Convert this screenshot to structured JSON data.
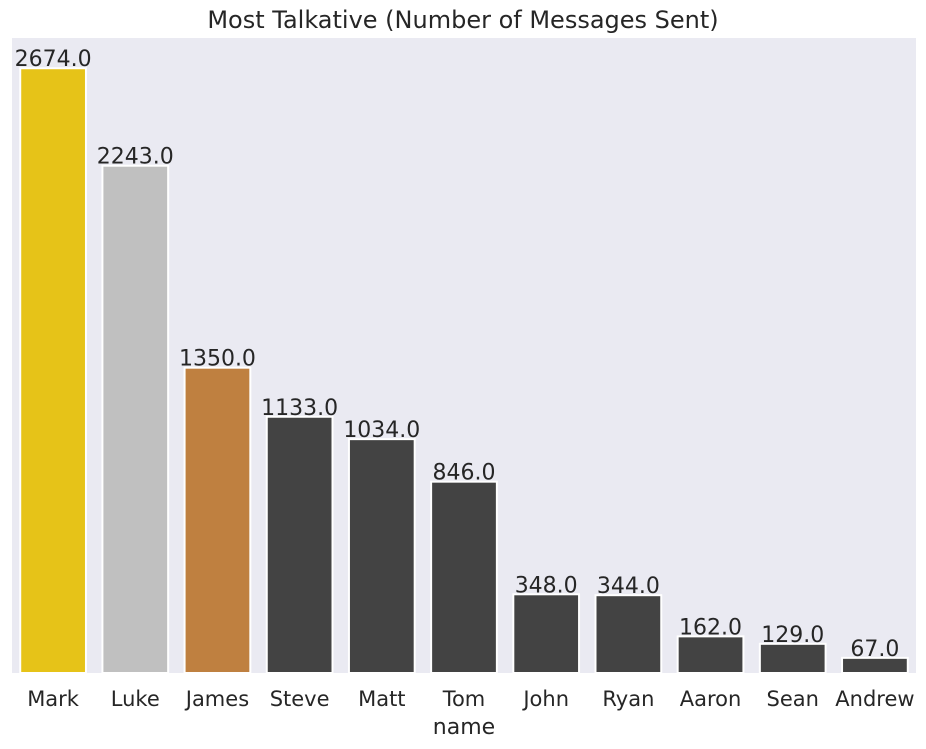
{
  "chart_data": {
    "type": "bar",
    "title": "Most Talkative (Number of Messages Sent)",
    "xlabel": "name",
    "ylabel": "",
    "categories": [
      "Mark",
      "Luke",
      "James",
      "Steve",
      "Matt",
      "Tom",
      "John",
      "Ryan",
      "Aaron",
      "Sean",
      "Andrew"
    ],
    "values": [
      2674.0,
      2243.0,
      1350.0,
      1133.0,
      1034.0,
      846.0,
      348.0,
      344.0,
      162.0,
      129.0,
      67.0
    ],
    "value_labels": [
      "2674.0",
      "2243.0",
      "1350.0",
      "1133.0",
      "1034.0",
      "846.0",
      "348.0",
      "344.0",
      "162.0",
      "129.0",
      "67.0"
    ],
    "bar_colors": [
      "#e6c318",
      "#c0c0c0",
      "#bf8040",
      "#434343",
      "#434343",
      "#434343",
      "#434343",
      "#434343",
      "#434343",
      "#434343",
      "#434343"
    ],
    "ylim": [
      0,
      2807.7
    ],
    "grid": false,
    "background": "#eaeaf2"
  }
}
